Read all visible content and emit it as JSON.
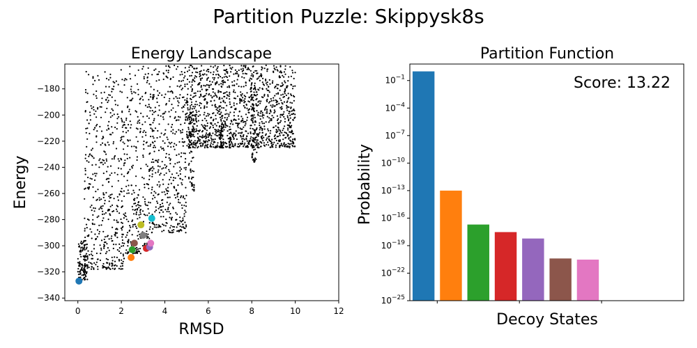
{
  "figure": {
    "title": "Partition Puzzle: Skippysk8s"
  },
  "chart_data": [
    {
      "type": "scatter",
      "title": "Energy Landscape",
      "xlabel": "RMSD",
      "ylabel": "Energy",
      "xlim": [
        -0.6,
        12
      ],
      "ylim": [
        -342,
        -161
      ],
      "xticks": [
        0,
        2,
        4,
        6,
        8,
        10,
        12
      ],
      "yticks": [
        -340,
        -320,
        -300,
        -280,
        -260,
        -240,
        -220,
        -200,
        -180
      ],
      "grid": false,
      "background_point_color": "#000000",
      "background_clusters": [
        {
          "x_min": 0.0,
          "x_max": 0.45,
          "y_min": -326,
          "y_max": -296
        },
        {
          "x_min": 0.3,
          "x_max": 2.2,
          "y_min": -318,
          "y_max": -165
        },
        {
          "x_min": 2.2,
          "x_max": 2.9,
          "y_min": -306,
          "y_max": -162
        },
        {
          "x_min": 2.95,
          "x_max": 3.3,
          "y_min": -300,
          "y_max": -162
        },
        {
          "x_min": 3.3,
          "x_max": 5.0,
          "y_min": -290,
          "y_max": -162
        },
        {
          "x_min": 5.1,
          "x_max": 5.35,
          "y_min": -258,
          "y_max": -195
        },
        {
          "x_min": 6.5,
          "x_max": 6.7,
          "y_min": -225,
          "y_max": -200
        },
        {
          "x_min": 7.95,
          "x_max": 8.25,
          "y_min": -236,
          "y_max": -175
        },
        {
          "x_min": 5.0,
          "x_max": 10.0,
          "y_min": -225,
          "y_max": -162
        }
      ],
      "highlight_points": [
        {
          "x": 0.05,
          "y": -327,
          "color": "#1f77b4"
        },
        {
          "x": 2.45,
          "y": -309,
          "color": "#ff7f0e"
        },
        {
          "x": 2.5,
          "y": -303,
          "color": "#2ca02c"
        },
        {
          "x": 3.15,
          "y": -302,
          "color": "#d62728"
        },
        {
          "x": 3.3,
          "y": -301,
          "color": "#9467bd"
        },
        {
          "x": 2.6,
          "y": -298,
          "color": "#8c564b"
        },
        {
          "x": 3.35,
          "y": -298,
          "color": "#e377c2"
        },
        {
          "x": 3.0,
          "y": -292,
          "color": "#7f7f7f"
        },
        {
          "x": 2.9,
          "y": -284,
          "color": "#bcbd22"
        },
        {
          "x": 3.4,
          "y": -279,
          "color": "#17becf"
        }
      ]
    },
    {
      "type": "bar",
      "title": "Partition Function",
      "xlabel": "Decoy States",
      "ylabel": "Probability",
      "yscale": "log",
      "ylim_exponent": [
        -25,
        0.8
      ],
      "yticks_exponent": [
        -25,
        -22,
        -19,
        -16,
        -13,
        -10,
        -7,
        -4,
        -1
      ],
      "annotation": "Score: 13.22",
      "grid": false,
      "bars": [
        {
          "value": 0.999,
          "color": "#1f77b4"
        },
        {
          "value": 1e-13,
          "color": "#ff7f0e"
        },
        {
          "value": 2e-17,
          "color": "#2ca02c"
        },
        {
          "value": 3e-18,
          "color": "#d62728"
        },
        {
          "value": 6e-19,
          "color": "#9467bd"
        },
        {
          "value": 4e-21,
          "color": "#8c564b"
        },
        {
          "value": 3e-21,
          "color": "#e377c2"
        }
      ],
      "xtick_count": 3
    }
  ]
}
